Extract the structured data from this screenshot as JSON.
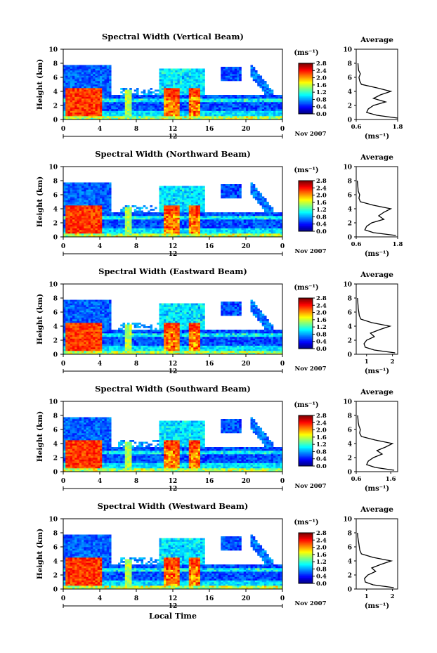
{
  "figure": {
    "xlabel_bottom": "Local Time",
    "colorbar_unit": "(ms⁻¹)",
    "colorbar_ticks": [
      "0.0",
      "0.4",
      "0.8",
      "1.2",
      "1.6",
      "2.0",
      "2.4",
      "2.8"
    ],
    "date_label": "Nov 2007",
    "day_label": "12",
    "ylabel": "Height (km)",
    "avg_title": "Average",
    "avg_xlabel": "(ms⁻¹)"
  },
  "chart_data": [
    {
      "type": "heatmap",
      "title": "Spectral Width (Vertical Beam)",
      "ylabel": "Height (km)",
      "xlabel": "Local Time",
      "x_ticks": [
        "0",
        "4",
        "8",
        "12",
        "16",
        "20",
        "0"
      ],
      "y_ticks": [
        "0",
        "2",
        "4",
        "6",
        "8",
        "10"
      ],
      "xlim": [
        0,
        24
      ],
      "ylim": [
        0,
        10
      ],
      "colorbar": {
        "unit": "(ms⁻¹)",
        "range": [
          0.0,
          2.8
        ],
        "ticks": [
          "0.0",
          "0.4",
          "0.8",
          "1.2",
          "1.6",
          "2.0",
          "2.4",
          "2.8"
        ]
      },
      "average_profile": {
        "title": "Average",
        "xlabel": "(ms⁻¹)",
        "xlim": [
          0.6,
          1.8
        ],
        "x_ticks": [
          "0.6",
          "1.8"
        ],
        "y_ticks": [
          "0",
          "2",
          "4",
          "6",
          "8",
          "10"
        ],
        "height_km": [
          0.2,
          0.6,
          1.0,
          1.5,
          2.0,
          2.5,
          3.0,
          3.5,
          4.0,
          4.5,
          5.0,
          5.5,
          6.0,
          6.5,
          7.0,
          7.5,
          8.0
        ],
        "width_ms": [
          1.8,
          1.2,
          0.9,
          0.95,
          1.1,
          1.45,
          1.1,
          1.3,
          1.6,
          1.2,
          0.75,
          0.7,
          0.68,
          0.72,
          0.67,
          0.66,
          0.65
        ]
      }
    },
    {
      "type": "heatmap",
      "title": "Spectral Width (Northward Beam)",
      "ylabel": "Height (km)",
      "xlabel": "Local Time",
      "x_ticks": [
        "0",
        "4",
        "8",
        "12",
        "16",
        "20",
        "0"
      ],
      "y_ticks": [
        "0",
        "2",
        "4",
        "6",
        "8",
        "10"
      ],
      "xlim": [
        0,
        24
      ],
      "ylim": [
        0,
        10
      ],
      "colorbar": {
        "unit": "(ms⁻¹)",
        "range": [
          0.0,
          2.8
        ],
        "ticks": [
          "0.0",
          "0.4",
          "0.8",
          "1.2",
          "1.6",
          "2.0",
          "2.4",
          "2.8"
        ]
      },
      "average_profile": {
        "title": "Average",
        "xlabel": "(ms⁻¹)",
        "xlim": [
          0.6,
          1.8
        ],
        "x_ticks": [
          "0.6",
          "1.8"
        ],
        "y_ticks": [
          "0",
          "2",
          "4",
          "6",
          "8",
          "10"
        ],
        "height_km": [
          0.2,
          0.6,
          1.0,
          1.5,
          2.0,
          2.5,
          3.0,
          3.5,
          4.0,
          4.5,
          5.0,
          5.5,
          6.0,
          6.5,
          7.0,
          7.5,
          8.0
        ],
        "width_ms": [
          1.75,
          1.1,
          0.85,
          0.9,
          1.05,
          1.4,
          1.25,
          1.4,
          1.6,
          1.1,
          0.72,
          0.68,
          0.7,
          0.66,
          0.65,
          0.64,
          0.63
        ]
      }
    },
    {
      "type": "heatmap",
      "title": "Spectral Width (Eastward Beam)",
      "ylabel": "Height (km)",
      "xlabel": "Local Time",
      "x_ticks": [
        "0",
        "4",
        "8",
        "12",
        "16",
        "20",
        "0"
      ],
      "y_ticks": [
        "0",
        "2",
        "4",
        "6",
        "8",
        "10"
      ],
      "xlim": [
        0,
        24
      ],
      "ylim": [
        0,
        10
      ],
      "colorbar": {
        "unit": "(ms⁻¹)",
        "range": [
          0.0,
          2.8
        ],
        "ticks": [
          "0.0",
          "0.4",
          "0.8",
          "1.2",
          "1.6",
          "2.0",
          "2.4",
          "2.8"
        ]
      },
      "average_profile": {
        "title": "Average",
        "xlabel": "(ms⁻¹)",
        "xlim": [
          0.6,
          2.2
        ],
        "x_ticks": [
          "1",
          "2"
        ],
        "y_ticks": [
          "0",
          "2",
          "4",
          "6",
          "8",
          "10"
        ],
        "height_km": [
          0.2,
          0.6,
          1.0,
          1.5,
          2.0,
          2.5,
          3.0,
          3.5,
          4.0,
          4.5,
          5.0,
          5.5,
          6.0,
          6.5,
          7.0,
          7.5,
          8.0
        ],
        "width_ms": [
          2.1,
          1.3,
          0.95,
          0.9,
          1.0,
          1.3,
          1.15,
          1.5,
          1.9,
          1.2,
          0.78,
          0.72,
          0.7,
          0.68,
          0.67,
          0.66,
          0.65
        ]
      }
    },
    {
      "type": "heatmap",
      "title": "Spectral Width (Southward Beam)",
      "ylabel": "Height (km)",
      "xlabel": "Local Time",
      "x_ticks": [
        "0",
        "4",
        "8",
        "12",
        "16",
        "20",
        "0"
      ],
      "y_ticks": [
        "0",
        "2",
        "4",
        "6",
        "8",
        "10"
      ],
      "xlim": [
        0,
        24
      ],
      "ylim": [
        0,
        10
      ],
      "colorbar": {
        "unit": "(ms⁻¹)",
        "range": [
          0.0,
          2.8
        ],
        "ticks": [
          "0.0",
          "0.4",
          "0.8",
          "1.2",
          "1.6",
          "2.0",
          "2.4",
          "2.8"
        ]
      },
      "average_profile": {
        "title": "Average",
        "xlabel": "(ms⁻¹)",
        "xlim": [
          0.6,
          1.8
        ],
        "x_ticks": [
          "0.6",
          "1.6"
        ],
        "y_ticks": [
          "0",
          "2",
          "4",
          "6",
          "8",
          "10"
        ],
        "height_km": [
          0.2,
          0.6,
          1.0,
          1.5,
          2.0,
          2.5,
          3.0,
          3.5,
          4.0,
          4.5,
          5.0,
          5.5,
          6.0,
          6.5,
          7.0,
          7.5,
          8.0
        ],
        "width_ms": [
          1.7,
          1.15,
          0.9,
          0.95,
          1.1,
          1.35,
          1.2,
          1.45,
          1.65,
          1.15,
          0.75,
          0.7,
          0.72,
          0.68,
          0.66,
          0.65,
          0.64
        ]
      }
    },
    {
      "type": "heatmap",
      "title": "Spectral Width (Westward Beam)",
      "ylabel": "Height (km)",
      "xlabel": "Local Time",
      "x_ticks": [
        "0",
        "4",
        "8",
        "12",
        "16",
        "20",
        "0"
      ],
      "y_ticks": [
        "0",
        "2",
        "4",
        "6",
        "8",
        "10"
      ],
      "xlim": [
        0,
        24
      ],
      "ylim": [
        0,
        10
      ],
      "colorbar": {
        "unit": "(ms⁻¹)",
        "range": [
          0.0,
          2.8
        ],
        "ticks": [
          "0.0",
          "0.4",
          "0.8",
          "1.2",
          "1.6",
          "2.0",
          "2.4",
          "2.8"
        ]
      },
      "average_profile": {
        "title": "Average",
        "xlabel": "(ms⁻¹)",
        "xlim": [
          0.6,
          2.2
        ],
        "x_ticks": [
          "1",
          "2"
        ],
        "y_ticks": [
          "0",
          "2",
          "4",
          "6",
          "8",
          "10"
        ],
        "height_km": [
          0.2,
          0.6,
          1.0,
          1.5,
          2.0,
          2.5,
          3.0,
          3.5,
          4.0,
          4.5,
          5.0,
          5.5,
          6.0,
          6.5,
          7.0,
          7.5,
          8.0
        ],
        "width_ms": [
          2.05,
          1.25,
          0.95,
          0.92,
          1.05,
          1.35,
          1.2,
          1.55,
          1.95,
          1.25,
          0.8,
          0.74,
          0.72,
          0.7,
          0.68,
          0.66,
          0.65
        ]
      }
    }
  ]
}
